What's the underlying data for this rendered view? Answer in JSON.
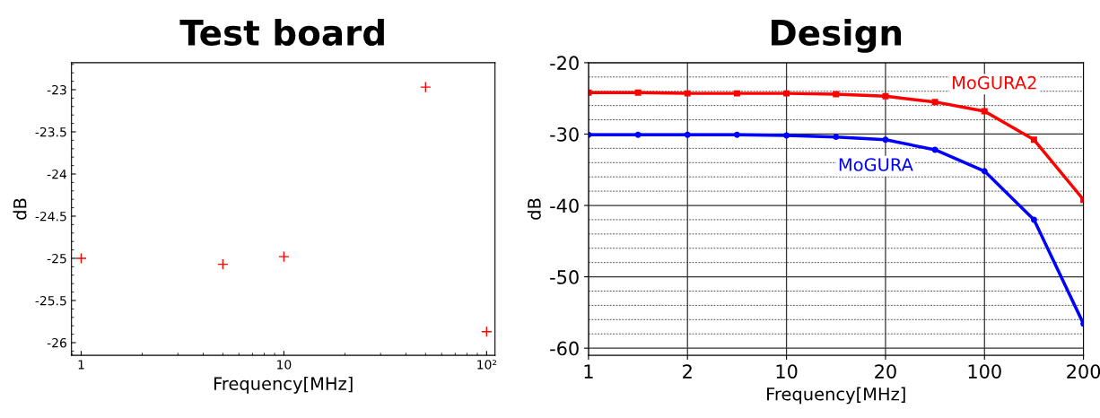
{
  "chart_data": [
    {
      "type": "scatter",
      "title": "Test board",
      "xlabel": "Frequency[MHz]",
      "ylabel": "dB",
      "log": "x",
      "marker": "cross",
      "grid": false,
      "xlim": [
        0.896,
        110
      ],
      "xticks": [
        1,
        10,
        {
          "value": 100,
          "label": "10²"
        }
      ],
      "ylim": [
        -26.15,
        -22.68
      ],
      "yticks": [
        -26,
        -25.5,
        -25,
        -24.5,
        -24,
        -23.5,
        -23
      ],
      "series": [
        {
          "color": "#ff0000",
          "x": [
            1,
            5,
            10,
            50,
            100
          ],
          "values": [
            -25.0,
            -25.07,
            -24.98,
            -22.97,
            -25.87
          ]
        }
      ]
    },
    {
      "type": "line",
      "title": "Design",
      "xlabel": "Frequency[MHz]",
      "ylabel": "dB",
      "grid": true,
      "categories": [
        "1",
        null,
        "2",
        null,
        "10",
        null,
        "20",
        null,
        "100",
        null,
        "200"
      ],
      "ylim": [
        -61,
        -20
      ],
      "yticks": [
        -60,
        -50,
        -40,
        -30,
        -20
      ],
      "series": [
        {
          "name": "MoGURA2",
          "color": "#ff0000",
          "marker": "square",
          "values": [
            -24.2,
            -24.2,
            -24.3,
            -24.3,
            -24.3,
            -24.4,
            -24.7,
            -25.5,
            -26.8,
            -30.8,
            -39.2
          ]
        },
        {
          "name": "MoGURA",
          "color": "#0000ff",
          "marker": "circle",
          "values": [
            -30.1,
            -30.1,
            -30.1,
            -30.1,
            -30.2,
            -30.4,
            -30.8,
            -32.2,
            -35.2,
            -42.0,
            -56.6
          ]
        }
      ]
    }
  ]
}
